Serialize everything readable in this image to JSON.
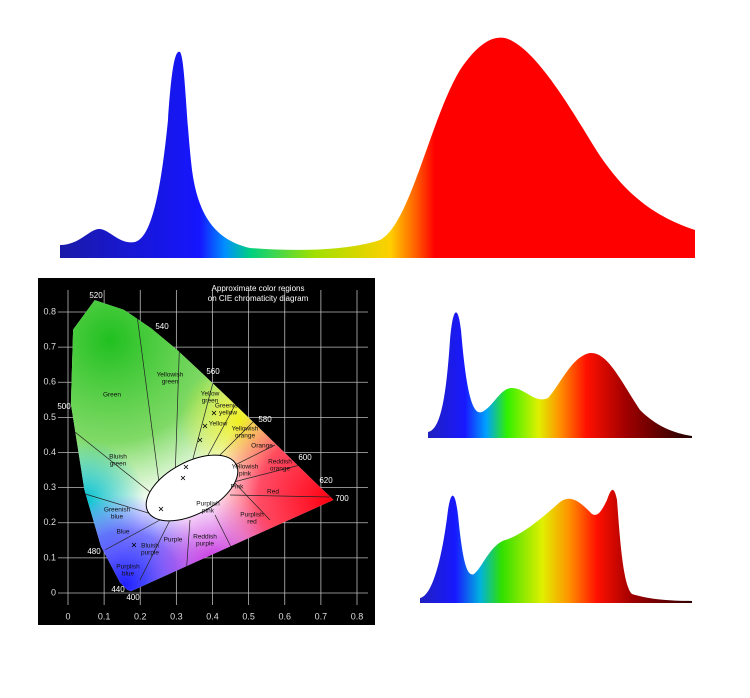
{
  "cie": {
    "title": [
      "Approximate color regions",
      "on CIE chromaticity diagram"
    ],
    "xticks": [
      0,
      0.1,
      0.2,
      0.3,
      0.4,
      0.5,
      0.6,
      0.7,
      0.8
    ],
    "yticks": [
      0,
      0.1,
      0.2,
      0.3,
      0.4,
      0.5,
      0.6,
      0.7,
      0.8
    ],
    "wavelengths": [
      520,
      540,
      560,
      580,
      600,
      620,
      700,
      500,
      480,
      440,
      400
    ],
    "regions": [
      "Green",
      "Yellowish green",
      "Yellow green",
      "Greenish yellow",
      "Yellow",
      "Yellowish orange",
      "Orange",
      "Reddish orange",
      "Bluish green",
      "Yellowish pink",
      "Pink",
      "Red",
      "Purplish pink",
      "Purplish red",
      "Greenish blue",
      "Blue",
      "Bluish purple",
      "Purplish blue",
      "Purple",
      "Reddish purple"
    ]
  }
}
